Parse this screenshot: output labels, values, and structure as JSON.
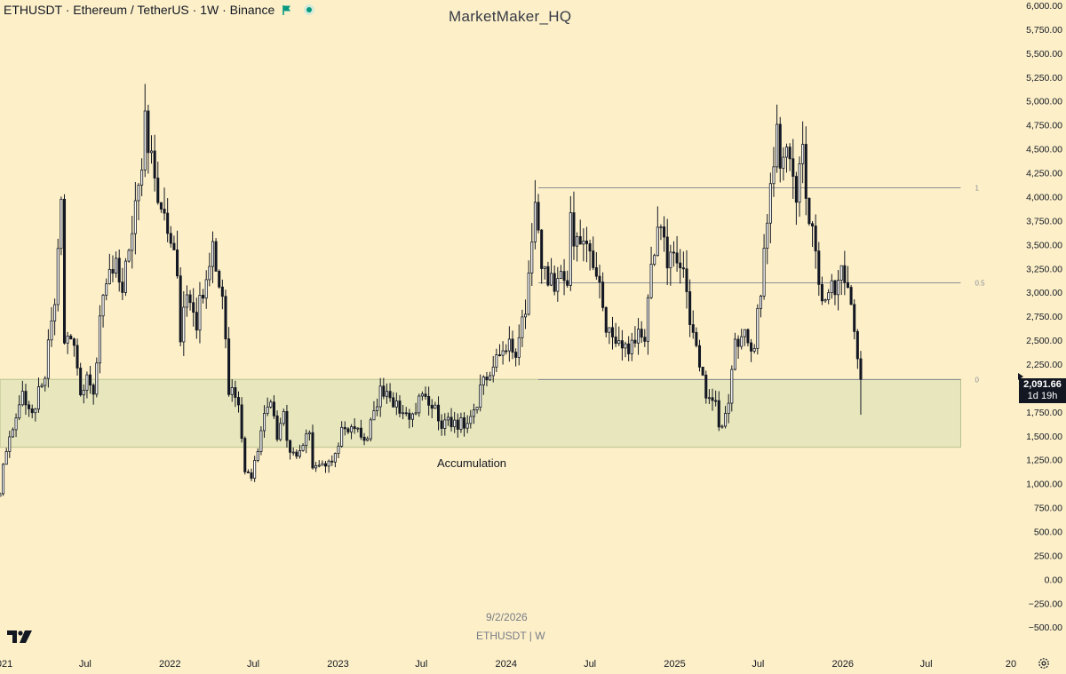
{
  "header": {
    "symbol_text": "ETHUSDT · Ethereum / TetherUS · 1W · Binance",
    "flag_icon": "green-flag-icon",
    "status_icon": "market-open-dot-icon"
  },
  "watermark": "MarketMaker_HQ",
  "stamp": {
    "date": "9/2/2026",
    "symbol": "ETHUSDT | W"
  },
  "last_price": {
    "value": "2,091.66",
    "countdown": "1d 19h"
  },
  "colors": {
    "background": "#fdf0c9",
    "candle": "#131722",
    "zone_fill": "#e7e6bc",
    "zone_border": "#b9c28e",
    "fib_line": "#8a8d96",
    "axis_text": "#131722"
  },
  "chart_data": {
    "type": "candlestick",
    "timeframe": "1W",
    "ylim": [
      -600,
      6000
    ],
    "y_ticks": [
      "6,000.00",
      "5,750.00",
      "5,500.00",
      "5,250.00",
      "5,000.00",
      "4,750.00",
      "4,500.00",
      "4,250.00",
      "4,000.00",
      "3,750.00",
      "3,500.00",
      "3,250.00",
      "3,000.00",
      "2,750.00",
      "2,500.00",
      "2,250.00",
      "2,000.00",
      "1,750.00",
      "1,500.00",
      "1,250.00",
      "1,000.00",
      "750.00",
      "500.00",
      "250.00",
      "0.00",
      "−250.00",
      "−500.00"
    ],
    "x_ticks": [
      {
        "label": "2021",
        "date": "2021-01-01"
      },
      {
        "label": "Jul",
        "date": "2021-07-01"
      },
      {
        "label": "2022",
        "date": "2022-01-01"
      },
      {
        "label": "Jul",
        "date": "2022-07-01"
      },
      {
        "label": "2023",
        "date": "2023-01-01"
      },
      {
        "label": "Jul",
        "date": "2023-07-01"
      },
      {
        "label": "2024",
        "date": "2024-01-01"
      },
      {
        "label": "Jul",
        "date": "2024-07-01"
      },
      {
        "label": "2025",
        "date": "2025-01-01"
      },
      {
        "label": "Jul",
        "date": "2025-07-01"
      },
      {
        "label": "2026",
        "date": "2026-01-01"
      },
      {
        "label": "Jul",
        "date": "2026-07-01"
      },
      {
        "label": "20",
        "date": "2027-01-01"
      }
    ],
    "price_path": [
      [
        "2020-12-28",
        870
      ],
      [
        "2021-01-04",
        1200
      ],
      [
        "2021-01-25",
        1600
      ],
      [
        "2021-02-15",
        1900
      ],
      [
        "2021-03-08",
        1750
      ],
      [
        "2021-04-05",
        2150
      ],
      [
        "2021-04-26",
        2950
      ],
      [
        "2021-05-10",
        3950
      ],
      [
        "2021-05-17",
        2400
      ],
      [
        "2021-06-07",
        2550
      ],
      [
        "2021-06-21",
        1850
      ],
      [
        "2021-07-05",
        2150
      ],
      [
        "2021-07-19",
        1900
      ],
      [
        "2021-08-02",
        2700
      ],
      [
        "2021-08-23",
        3250
      ],
      [
        "2021-09-06",
        3450
      ],
      [
        "2021-09-20",
        2950
      ],
      [
        "2021-10-04",
        3500
      ],
      [
        "2021-10-25",
        4200
      ],
      [
        "2021-11-08",
        4700
      ],
      [
        "2021-11-22",
        4300
      ],
      [
        "2021-12-06",
        4000
      ],
      [
        "2021-12-27",
        3700
      ],
      [
        "2022-01-17",
        3200
      ],
      [
        "2022-01-24",
        2450
      ],
      [
        "2022-02-07",
        3050
      ],
      [
        "2022-02-28",
        2700
      ],
      [
        "2022-03-21",
        3150
      ],
      [
        "2022-04-04",
        3450
      ],
      [
        "2022-04-25",
        2900
      ],
      [
        "2022-05-09",
        2000
      ],
      [
        "2022-05-30",
        1800
      ],
      [
        "2022-06-13",
        1100
      ],
      [
        "2022-06-27",
        1050
      ],
      [
        "2022-07-18",
        1550
      ],
      [
        "2022-08-08",
        1900
      ],
      [
        "2022-08-22",
        1500
      ],
      [
        "2022-09-05",
        1700
      ],
      [
        "2022-09-19",
        1300
      ],
      [
        "2022-10-10",
        1300
      ],
      [
        "2022-10-31",
        1550
      ],
      [
        "2022-11-07",
        1200
      ],
      [
        "2022-11-28",
        1250
      ],
      [
        "2022-12-19",
        1200
      ],
      [
        "2023-01-09",
        1550
      ],
      [
        "2023-01-23",
        1600
      ],
      [
        "2023-03-06",
        1450
      ],
      [
        "2023-03-20",
        1800
      ],
      [
        "2023-04-10",
        2000
      ],
      [
        "2023-04-24",
        1850
      ],
      [
        "2023-05-22",
        1800
      ],
      [
        "2023-06-12",
        1700
      ],
      [
        "2023-06-26",
        1900
      ],
      [
        "2023-07-17",
        1850
      ],
      [
        "2023-08-14",
        1650
      ],
      [
        "2023-09-11",
        1620
      ],
      [
        "2023-10-02",
        1650
      ],
      [
        "2023-10-23",
        1800
      ],
      [
        "2023-11-13",
        2050
      ],
      [
        "2023-12-11",
        2250
      ],
      [
        "2024-01-08",
        2500
      ],
      [
        "2024-01-22",
        2250
      ],
      [
        "2024-02-12",
        2900
      ],
      [
        "2024-03-04",
        3800
      ],
      [
        "2024-03-18",
        3400
      ],
      [
        "2024-04-08",
        3100
      ],
      [
        "2024-04-22",
        3200
      ],
      [
        "2024-05-13",
        2950
      ],
      [
        "2024-05-20",
        3700
      ],
      [
        "2024-06-10",
        3500
      ],
      [
        "2024-06-24",
        3400
      ],
      [
        "2024-07-08",
        3300
      ],
      [
        "2024-07-22",
        3250
      ],
      [
        "2024-08-05",
        2600
      ],
      [
        "2024-08-26",
        2450
      ],
      [
        "2024-09-09",
        2400
      ],
      [
        "2024-09-30",
        2500
      ],
      [
        "2024-10-14",
        2650
      ],
      [
        "2024-10-28",
        2500
      ],
      [
        "2024-11-11",
        3200
      ],
      [
        "2024-12-02",
        3800
      ],
      [
        "2024-12-16",
        3400
      ],
      [
        "2025-01-06",
        3350
      ],
      [
        "2025-01-20",
        3250
      ],
      [
        "2025-02-03",
        2700
      ],
      [
        "2025-02-24",
        2200
      ],
      [
        "2025-03-10",
        1900
      ],
      [
        "2025-03-31",
        1800
      ],
      [
        "2025-04-07",
        1550
      ],
      [
        "2025-04-28",
        1800
      ],
      [
        "2025-05-12",
        2500
      ],
      [
        "2025-06-02",
        2550
      ],
      [
        "2025-06-23",
        2450
      ],
      [
        "2025-07-07",
        3000
      ],
      [
        "2025-07-21",
        3750
      ],
      [
        "2025-08-11",
        4600
      ],
      [
        "2025-08-25",
        4400
      ],
      [
        "2025-09-08",
        4500
      ],
      [
        "2025-09-22",
        4100
      ],
      [
        "2025-10-06",
        4400
      ],
      [
        "2025-10-13",
        3900
      ],
      [
        "2025-11-03",
        3500
      ],
      [
        "2025-11-17",
        2800
      ],
      [
        "2025-12-01",
        3000
      ],
      [
        "2025-12-15",
        3100
      ],
      [
        "2026-01-05",
        3200
      ],
      [
        "2026-01-19",
        2900
      ],
      [
        "2026-02-02",
        2300
      ],
      [
        "2026-02-09",
        2091.66
      ]
    ],
    "annotations": [
      {
        "type": "zone",
        "label": "Accumulation",
        "y_range": [
          1380,
          2090
        ],
        "x_range": [
          "2020-12-28",
          "2026-09-14"
        ]
      },
      {
        "type": "fib",
        "level": "1",
        "price": 4100,
        "x_start": "2024-03-11",
        "x_end": "2026-09-14"
      },
      {
        "type": "fib",
        "level": "0.5",
        "price": 3100,
        "x_start": "2024-03-11",
        "x_end": "2026-09-14"
      },
      {
        "type": "fib",
        "level": "0",
        "price": 2090,
        "x_start": "2024-03-11",
        "x_end": "2026-09-14"
      }
    ]
  }
}
